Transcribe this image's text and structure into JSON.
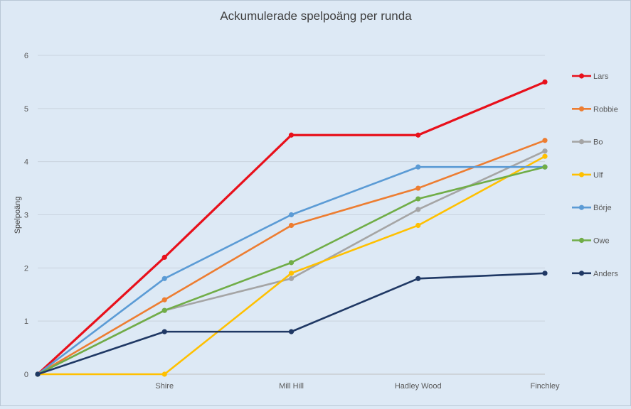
{
  "chart_data": {
    "type": "line",
    "title": "Ackumulerade spelpoäng per runda",
    "xlabel": "",
    "ylabel": "Spelpoäng",
    "categories": [
      "",
      "Shire",
      "Mill Hill",
      "Hadley Wood",
      "Finchley"
    ],
    "ylim": [
      0,
      6
    ],
    "yticks": [
      0,
      1,
      2,
      3,
      4,
      5,
      6
    ],
    "grid": true,
    "legend": "right",
    "series": [
      {
        "name": "Lars",
        "color": "#e8101b",
        "values": [
          0,
          2.2,
          4.5,
          4.5,
          5.5
        ]
      },
      {
        "name": "Robbie",
        "color": "#ed7d31",
        "values": [
          0,
          1.4,
          2.8,
          3.5,
          4.4
        ]
      },
      {
        "name": "Bo",
        "color": "#a5a5a5",
        "values": [
          0,
          1.2,
          1.8,
          3.1,
          4.2
        ]
      },
      {
        "name": "Ulf",
        "color": "#ffc000",
        "values": [
          0,
          0,
          1.9,
          2.8,
          4.1
        ]
      },
      {
        "name": "Börje",
        "color": "#5b9bd5",
        "values": [
          0,
          1.8,
          3.0,
          3.9,
          3.9
        ]
      },
      {
        "name": "Owe",
        "color": "#70ad47",
        "values": [
          0,
          1.2,
          2.1,
          3.3,
          3.9
        ]
      },
      {
        "name": "Anders",
        "color": "#1f3864",
        "values": [
          0,
          0.8,
          0.8,
          1.8,
          1.9
        ]
      }
    ]
  }
}
